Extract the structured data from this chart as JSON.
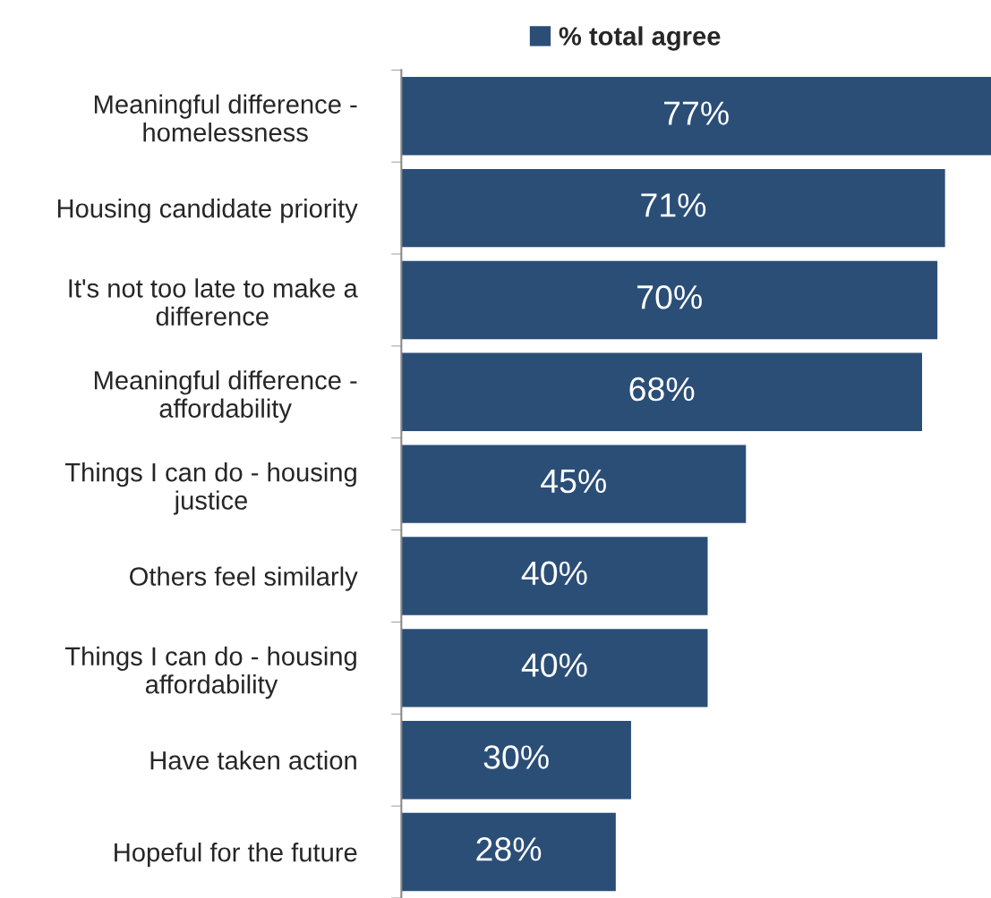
{
  "chart_data": {
    "type": "bar",
    "orientation": "horizontal",
    "relative": false,
    "categories": [
      "Meaningful difference - homelessness",
      "Housing candidate priority",
      "It's not too late to make a difference",
      "Meaningful difference - affordability",
      "Things I can do - housing justice",
      "Others feel similarly",
      "Things I can do - housing affordability",
      "Have taken action",
      "Hopeful for the future"
    ],
    "series": [
      {
        "name": "% total agree",
        "color": "#2b4e77",
        "values": [
          77,
          71,
          70,
          68,
          45,
          40,
          40,
          30,
          28
        ],
        "value_labels": [
          "77%",
          "71%",
          "70%",
          "68%",
          "45%",
          "40%",
          "40%",
          "30%",
          "28%"
        ]
      }
    ],
    "legend": "top",
    "grid": false
  }
}
